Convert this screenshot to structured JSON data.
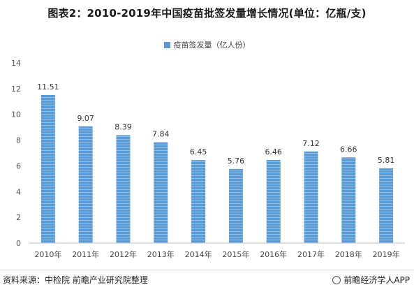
{
  "title": "图表2：2010-2019年中国疫苗批签发量增长情况(单位：亿瓶/支)",
  "source": "资料来源：中检院 前瞻产业研究院整理",
  "brand": "前瞻经济学人APP",
  "colors": {
    "bar": "#5b9bd5",
    "bar_stripe": "#ffffff",
    "axis": "#bfbfbf",
    "grid": "#d9d9d9"
  },
  "chart_data": {
    "type": "bar",
    "categories": [
      "2010年",
      "2011年",
      "2012年",
      "2013年",
      "2014年",
      "2015年",
      "2016年",
      "2017年",
      "2018年",
      "2019年"
    ],
    "series": [
      {
        "name": "疫苗签发量（亿人份）",
        "values": [
          11.51,
          9.07,
          8.39,
          7.84,
          6.45,
          5.76,
          6.46,
          7.12,
          6.66,
          5.81
        ]
      }
    ],
    "ylim": [
      0,
      14
    ],
    "yticks": [
      "0",
      "2",
      "4",
      "6",
      "8",
      "10",
      "12",
      "14"
    ],
    "data_labels": [
      "11.51",
      "9.07",
      "8.39",
      "7.84",
      "6.45",
      "5.76",
      "6.46",
      "7.12",
      "6.66",
      "5.81"
    ],
    "grid": false,
    "legend_position": "top-center"
  }
}
